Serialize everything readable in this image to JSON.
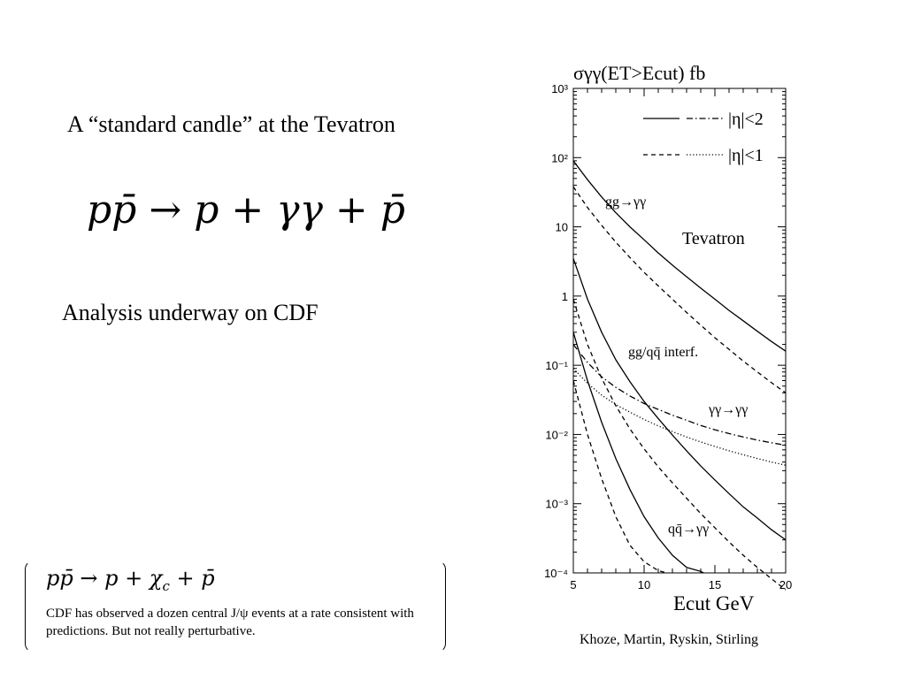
{
  "slide": {
    "title": "A “standard candle” at the Tevatron",
    "equation": {
      "lhs": "pp̄",
      "arrow": "→",
      "p": "p",
      "plus": "+",
      "gg": "γγ",
      "pbar": "p̄"
    },
    "subtitle": "Analysis underway on CDF",
    "box": {
      "equation": {
        "lhs": "pp̄",
        "arrow": "→",
        "p": "p",
        "plus": "+",
        "chi": "χ",
        "chi_sub": "c",
        "pbar": "p̄"
      },
      "text": "CDF has observed a dozen central J/ψ events at a rate consistent with predictions. But not really perturbative."
    },
    "credit": "Khoze, Martin, Ryskin, Stirling"
  },
  "chart_data": {
    "type": "line",
    "title": "σγγ(ET>Ecut)  fb",
    "xlabel": "Ecut GeV",
    "ylabel": "",
    "xlim": [
      5,
      20
    ],
    "ylim": [
      0.0001,
      1000
    ],
    "yscale": "log",
    "x_ticks": [
      "5",
      "10",
      "15",
      "20"
    ],
    "y_ticks": [
      "10⁻⁴",
      "10⁻³",
      "10⁻²",
      "10⁻¹",
      "1",
      "10",
      "10²",
      "10³"
    ],
    "legend": [
      {
        "label": "|η|<2",
        "styles": [
          "solid",
          "dashdot"
        ]
      },
      {
        "label": "|η|<1",
        "styles": [
          "dashed",
          "dotted"
        ]
      }
    ],
    "inset_label": "Tevatron",
    "annotations": [
      "gg→γγ",
      "gg/qq̄ interf.",
      "γγ→γγ",
      "qq̄→γγ"
    ],
    "series": [
      {
        "name": "gg→γγ",
        "style": "solid",
        "x": [
          5,
          6,
          7,
          8,
          9,
          10,
          11,
          12,
          13,
          14,
          15,
          16,
          17,
          18,
          19,
          20
        ],
        "y": [
          90,
          48,
          27,
          16,
          10,
          6.5,
          4.2,
          2.8,
          1.9,
          1.3,
          0.9,
          0.62,
          0.44,
          0.31,
          0.22,
          0.16
        ]
      },
      {
        "name": "gg→γγ",
        "style": "dashed",
        "x": [
          5,
          6,
          7,
          8,
          9,
          10,
          11,
          12,
          13,
          14,
          15,
          16,
          17,
          18,
          19,
          20
        ],
        "y": [
          38,
          19,
          10.5,
          6,
          3.6,
          2.2,
          1.4,
          0.9,
          0.58,
          0.38,
          0.25,
          0.17,
          0.115,
          0.08,
          0.056,
          0.04
        ]
      },
      {
        "name": "gg/qq̄ interf.",
        "style": "solid",
        "x": [
          5,
          6,
          7,
          8,
          9,
          10,
          11,
          12,
          13,
          14,
          15,
          16,
          17,
          18,
          19,
          20
        ],
        "y": [
          3.5,
          0.9,
          0.3,
          0.12,
          0.058,
          0.03,
          0.017,
          0.0098,
          0.0058,
          0.0035,
          0.0022,
          0.0014,
          0.0009,
          0.00062,
          0.00042,
          0.0003
        ]
      },
      {
        "name": "gg/qq̄ interf.",
        "style": "dashed",
        "x": [
          5,
          6,
          7,
          8,
          9,
          10,
          11,
          12,
          13,
          14,
          15,
          16,
          17,
          18,
          19,
          20
        ],
        "y": [
          0.9,
          0.2,
          0.065,
          0.026,
          0.012,
          0.0062,
          0.0034,
          0.002,
          0.0012,
          0.00072,
          0.00045,
          0.00028,
          0.00018,
          0.00012,
          8.2e-05,
          5.7e-05
        ]
      },
      {
        "name": "γγ→γγ",
        "style": "dashdot",
        "x": [
          5,
          6,
          7,
          8,
          9,
          10,
          11,
          12,
          13,
          14,
          15,
          16,
          17,
          18,
          19,
          20
        ],
        "y": [
          0.2,
          0.11,
          0.068,
          0.048,
          0.036,
          0.028,
          0.023,
          0.019,
          0.016,
          0.0135,
          0.0117,
          0.0103,
          0.0092,
          0.0083,
          0.0076,
          0.007
        ]
      },
      {
        "name": "γγ→γγ",
        "style": "dotted",
        "x": [
          5,
          6,
          7,
          8,
          9,
          10,
          11,
          12,
          13,
          14,
          15,
          16,
          17,
          18,
          19,
          20
        ],
        "y": [
          0.09,
          0.055,
          0.037,
          0.027,
          0.021,
          0.0165,
          0.0133,
          0.011,
          0.0092,
          0.0078,
          0.0067,
          0.0058,
          0.0051,
          0.0045,
          0.004,
          0.0036
        ]
      },
      {
        "name": "qq̄→γγ",
        "style": "solid",
        "x": [
          5,
          6,
          7,
          8,
          9,
          10,
          11,
          12,
          13,
          14,
          14.2
        ],
        "y": [
          0.3,
          0.06,
          0.015,
          0.0045,
          0.0016,
          0.00065,
          0.00032,
          0.00018,
          0.00012,
          0.000105,
          0.0001
        ]
      },
      {
        "name": "qq̄→γγ",
        "style": "dashed",
        "x": [
          5,
          6,
          7,
          8,
          9,
          10,
          11,
          11.6
        ],
        "y": [
          0.06,
          0.01,
          0.0023,
          0.00065,
          0.00025,
          0.000145,
          0.000108,
          0.0001
        ]
      }
    ]
  }
}
